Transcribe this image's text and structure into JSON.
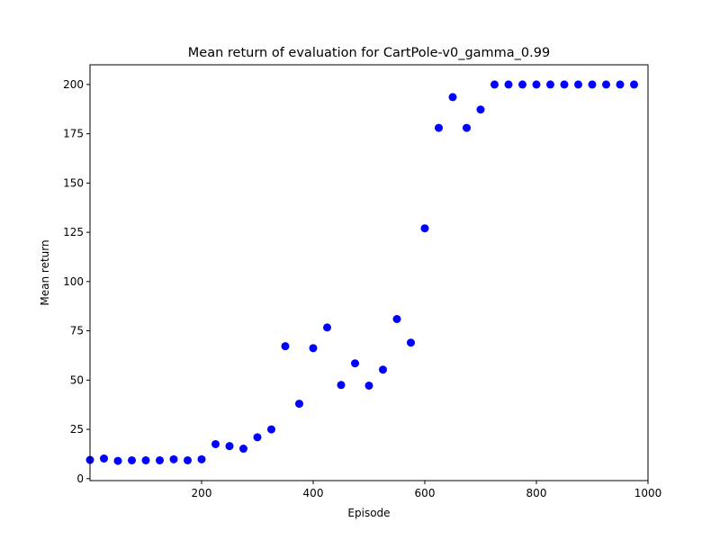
{
  "chart_data": {
    "type": "scatter",
    "title": "Mean return of evaluation for CartPole-v0_gamma_0.99",
    "xlabel": "Episode",
    "ylabel": "Mean return",
    "xlim": [
      0,
      1000
    ],
    "ylim": [
      -1,
      210
    ],
    "xticks": [
      200,
      400,
      600,
      800,
      1000
    ],
    "yticks": [
      0,
      25,
      50,
      75,
      100,
      125,
      150,
      175,
      200
    ],
    "grid": false,
    "marker_color": "#0000ff",
    "x": [
      0,
      25,
      50,
      75,
      100,
      125,
      150,
      175,
      200,
      225,
      250,
      275,
      300,
      325,
      350,
      375,
      400,
      425,
      450,
      475,
      500,
      525,
      550,
      575,
      600,
      625,
      650,
      675,
      700,
      725,
      750,
      775,
      800,
      825,
      850,
      875,
      900,
      925,
      950,
      975
    ],
    "y": [
      9.5,
      10.2,
      9.0,
      9.3,
      9.3,
      9.3,
      9.8,
      9.3,
      9.8,
      17.5,
      16.5,
      15.2,
      21.0,
      25.0,
      67.2,
      38.0,
      66.2,
      76.7,
      47.5,
      58.5,
      47.2,
      55.3,
      81.0,
      69.0,
      127.0,
      178.0,
      193.6,
      178.0,
      187.3,
      200.0,
      200.0,
      200.0,
      200.0,
      200.0,
      200.0,
      200.0,
      200.0,
      200.0,
      200.0,
      200.0
    ]
  }
}
